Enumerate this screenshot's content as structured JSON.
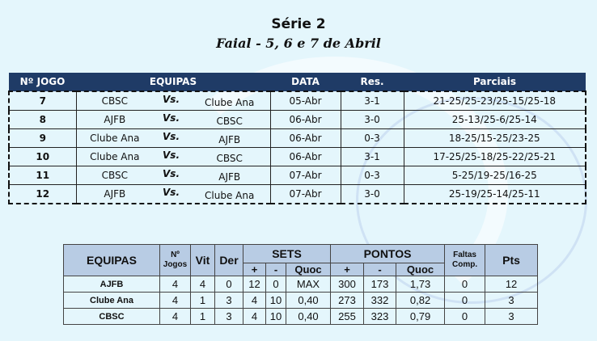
{
  "title": "Série 2",
  "subtitle": "Faial - 5, 6 e 7 de Abril",
  "games": {
    "headers": [
      "Nº JOGO",
      "EQUIPAS",
      "DATA",
      "Res.",
      "Parciais"
    ],
    "vs_label": "Vs.",
    "rows": [
      {
        "num": "7",
        "home": "CBSC",
        "away": "Clube Ana",
        "date": "05-Abr",
        "res": "3-1",
        "sets": "21-25/25-23/25-15/25-18"
      },
      {
        "num": "8",
        "home": "AJFB",
        "away": "CBSC",
        "date": "06-Abr",
        "res": "3-0",
        "sets": "25-13/25-6/25-14"
      },
      {
        "num": "9",
        "home": "Clube Ana",
        "away": "AJFB",
        "date": "06-Abr",
        "res": "0-3",
        "sets": "18-25/15-25/23-25"
      },
      {
        "num": "10",
        "home": "Clube Ana",
        "away": "CBSC",
        "date": "06-Abr",
        "res": "3-1",
        "sets": "17-25/25-18/25-22/25-21"
      },
      {
        "num": "11",
        "home": "CBSC",
        "away": "AJFB",
        "date": "07-Abr",
        "res": "0-3",
        "sets": "5-25/19-25/16-25"
      },
      {
        "num": "12",
        "home": "AJFB",
        "away": "Clube Ana",
        "date": "07-Abr",
        "res": "3-0",
        "sets": "25-19/25-14/25-11"
      }
    ]
  },
  "standings": {
    "headers": {
      "equipas": "EQUIPAS",
      "jogos": "Nº Jogos",
      "vit": "Vit",
      "der": "Der",
      "sets": "SETS",
      "pontos": "PONTOS",
      "faltas": "Faltas Comp.",
      "pts": "Pts",
      "plus": "+",
      "minus": "-",
      "quoc": "Quoc"
    },
    "rows": [
      {
        "team": "AJFB",
        "jogos": "4",
        "vit": "4",
        "der": "0",
        "sp": "12",
        "sm": "0",
        "sq": "MAX",
        "pp": "300",
        "pm": "173",
        "pq": "1,73",
        "faltas": "0",
        "pts": "12"
      },
      {
        "team": "Clube Ana",
        "jogos": "4",
        "vit": "1",
        "der": "3",
        "sp": "4",
        "sm": "10",
        "sq": "0,40",
        "pp": "273",
        "pm": "332",
        "pq": "0,82",
        "faltas": "0",
        "pts": "3"
      },
      {
        "team": "CBSC",
        "jogos": "4",
        "vit": "1",
        "der": "3",
        "sp": "4",
        "sm": "10",
        "sq": "0,40",
        "pp": "255",
        "pm": "323",
        "pq": "0,79",
        "faltas": "0",
        "pts": "3"
      }
    ]
  }
}
